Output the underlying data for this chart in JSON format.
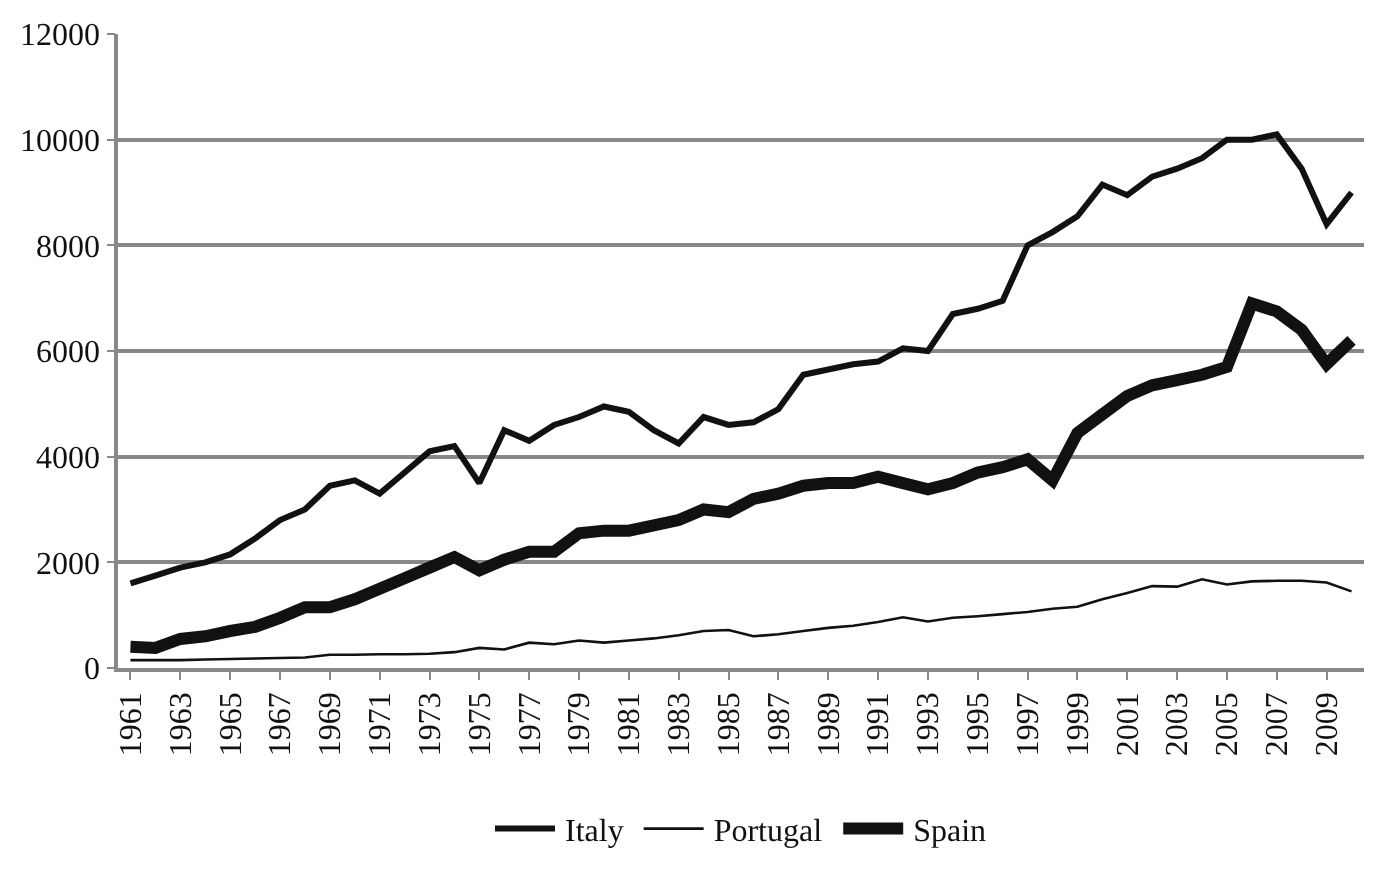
{
  "chart_data": {
    "type": "line",
    "categories": [
      "1961",
      null,
      "1963",
      null,
      "1965",
      null,
      "1967",
      null,
      "1969",
      null,
      "1971",
      null,
      "1973",
      null,
      "1975",
      null,
      "1977",
      null,
      "1979",
      null,
      "1981",
      null,
      "1983",
      null,
      "1985",
      null,
      "1987",
      null,
      "1989",
      null,
      "1991",
      null,
      "1993",
      null,
      "1995",
      null,
      "1997",
      null,
      "1999",
      null,
      "2001",
      null,
      "2003",
      null,
      "2005",
      null,
      "2007",
      null,
      "2009",
      null
    ],
    "series": [
      {
        "name": "Italy",
        "color": "#111111",
        "values": [
          1600,
          1750,
          1900,
          2000,
          2150,
          2450,
          2800,
          3000,
          3450,
          3550,
          3300,
          3700,
          4100,
          4200,
          3500,
          4500,
          4300,
          4600,
          4750,
          4950,
          4850,
          4500,
          4250,
          4750,
          4600,
          4650,
          4900,
          5550,
          5650,
          5750,
          5800,
          6050,
          6000,
          6700,
          6800,
          6950,
          8000,
          8250,
          8550,
          9150,
          8950,
          9300,
          9450,
          9650,
          10000,
          10000,
          10100,
          9450,
          8400,
          9000
        ]
      },
      {
        "name": "Portugal",
        "color": "#111111",
        "values": [
          150,
          150,
          150,
          160,
          170,
          180,
          190,
          200,
          250,
          250,
          260,
          260,
          270,
          300,
          380,
          350,
          480,
          450,
          520,
          480,
          520,
          560,
          620,
          700,
          720,
          600,
          640,
          700,
          760,
          800,
          870,
          960,
          880,
          950,
          980,
          1020,
          1060,
          1120,
          1160,
          1300,
          1420,
          1550,
          1540,
          1680,
          1580,
          1640,
          1650,
          1650,
          1620,
          1450
        ]
      },
      {
        "name": "Spain",
        "color": "#111111",
        "values": [
          400,
          380,
          550,
          600,
          700,
          780,
          950,
          1150,
          1150,
          1300,
          1500,
          1700,
          1900,
          2100,
          1850,
          2050,
          2200,
          2200,
          2550,
          2600,
          2600,
          2700,
          2800,
          3000,
          2950,
          3200,
          3300,
          3450,
          3500,
          3500,
          3620,
          3500,
          3380,
          3500,
          3700,
          3800,
          3950,
          3550,
          4450,
          4800,
          5150,
          5350,
          5450,
          5550,
          5700,
          6900,
          6750,
          6400,
          5750,
          6200
        ]
      }
    ],
    "ylim": [
      0,
      12000
    ],
    "yticks": [
      0,
      2000,
      4000,
      6000,
      8000,
      10000,
      12000
    ],
    "grid": "y",
    "legend": "bottom",
    "marker": "none",
    "line_style": "solid"
  }
}
